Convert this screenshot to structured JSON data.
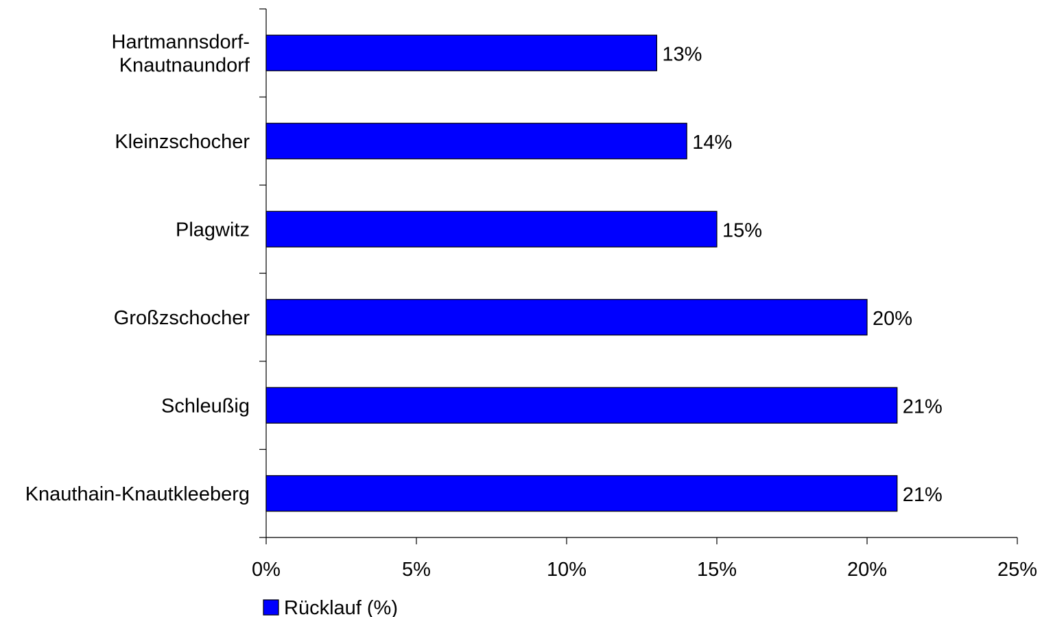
{
  "chart_data": {
    "type": "bar",
    "orientation": "horizontal",
    "categories": [
      [
        "Hartmannsdorf-",
        "Knautnaundorf"
      ],
      [
        "Kleinzschocher"
      ],
      [
        "Plagwitz"
      ],
      [
        "Großzschocher"
      ],
      [
        "Schleußig"
      ],
      [
        "Knauthain-Knautkleeberg"
      ]
    ],
    "series": [
      {
        "name": "Rücklauf (%)",
        "color": "#0000ff",
        "values": [
          13,
          14,
          15,
          20,
          21,
          21
        ],
        "value_labels": [
          "13%",
          "14%",
          "15%",
          "20%",
          "21%",
          "21%"
        ]
      }
    ],
    "xlim": [
      0,
      25
    ],
    "xticks": [
      0,
      5,
      10,
      15,
      20,
      25
    ],
    "xtick_labels": [
      "0%",
      "5%",
      "10%",
      "15%",
      "20%",
      "25%"
    ],
    "title": "",
    "xlabel": "",
    "ylabel": "",
    "grid": false,
    "legend": {
      "position": "bottom-left"
    }
  }
}
